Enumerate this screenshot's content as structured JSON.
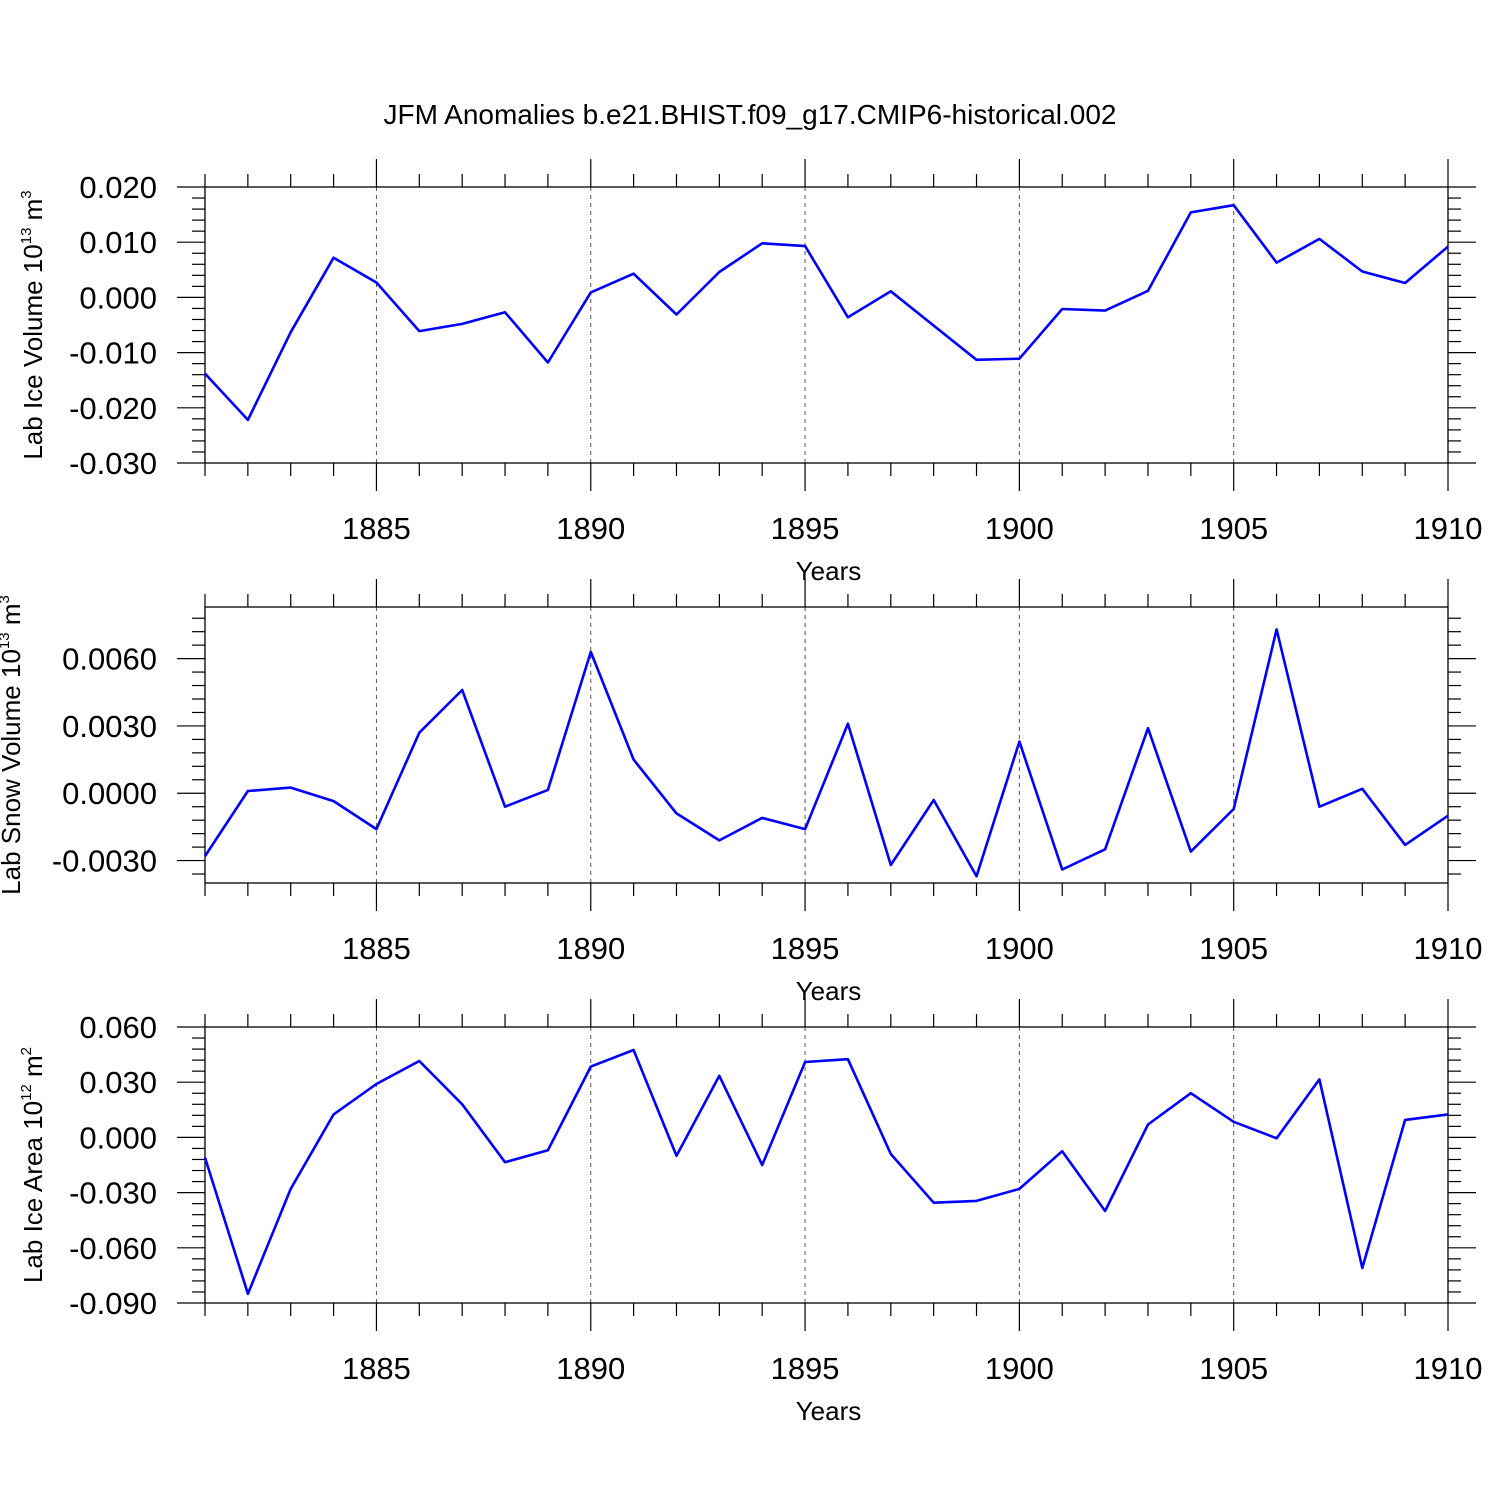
{
  "title": "JFM Anomalies b.e21.BHIST.f09_g17.CMIP6-historical.002",
  "colors": {
    "line": "#0000ff",
    "axis": "#000000",
    "grid": "#555555"
  },
  "chart_data": [
    {
      "type": "line",
      "xlabel": "Years",
      "ylabel": {
        "text": "Lab Ice Volume 10",
        "sup1": "13",
        "unit": " m",
        "sup2": "3"
      },
      "xlim": [
        1881,
        1910
      ],
      "ylim": [
        -0.03,
        0.02
      ],
      "xticks": [
        1885,
        1890,
        1895,
        1900,
        1905,
        1910
      ],
      "yticks": [
        "-0.030",
        "-0.020",
        "-0.010",
        "0.000",
        "0.010",
        "0.020"
      ],
      "ytick_values": [
        -0.03,
        -0.02,
        -0.01,
        0.0,
        0.01,
        0.02
      ],
      "x": [
        1881,
        1882,
        1883,
        1884,
        1885,
        1886,
        1887,
        1888,
        1889,
        1890,
        1891,
        1892,
        1893,
        1894,
        1895,
        1896,
        1897,
        1898,
        1899,
        1900,
        1901,
        1902,
        1903,
        1904,
        1905,
        1906,
        1907,
        1908,
        1909,
        1910
      ],
      "series": [
        {
          "name": "Lab Ice Volume",
          "values": [
            -0.0138,
            -0.0222,
            -0.0063,
            0.0072,
            0.0027,
            -0.0061,
            -0.0048,
            -0.0027,
            -0.0118,
            0.0009,
            0.0043,
            -0.0031,
            0.0046,
            0.0098,
            0.0093,
            -0.0036,
            0.0011,
            -0.0051,
            -0.0113,
            -0.0111,
            -0.0021,
            -0.0024,
            0.0012,
            0.0154,
            0.0167,
            0.0063,
            0.0106,
            0.0047,
            0.0026,
            0.0092
          ]
        }
      ]
    },
    {
      "type": "line",
      "xlabel": "Years",
      "ylabel": {
        "text": "Lab Snow Volume 10",
        "sup1": "13",
        "unit": " m",
        "sup2": "3"
      },
      "xlim": [
        1881,
        1910
      ],
      "ylim": [
        -0.004,
        0.0083
      ],
      "xticks": [
        1885,
        1890,
        1895,
        1900,
        1905,
        1910
      ],
      "yticks": [
        "-0.0030",
        "0.0000",
        "0.0030",
        "0.0060"
      ],
      "ytick_values": [
        -0.003,
        0.0,
        0.003,
        0.006
      ],
      "x": [
        1881,
        1882,
        1883,
        1884,
        1885,
        1886,
        1887,
        1888,
        1889,
        1890,
        1891,
        1892,
        1893,
        1894,
        1895,
        1896,
        1897,
        1898,
        1899,
        1900,
        1901,
        1902,
        1903,
        1904,
        1905,
        1906,
        1907,
        1908,
        1909,
        1910
      ],
      "series": [
        {
          "name": "Lab Snow Volume",
          "values": [
            -0.0028,
            0.0001,
            0.00025,
            -0.00035,
            -0.0016,
            0.0027,
            0.0046,
            -0.0006,
            0.00015,
            0.0063,
            0.0015,
            -0.0009,
            -0.0021,
            -0.0011,
            -0.0016,
            0.0031,
            -0.0032,
            -0.0003,
            -0.0037,
            0.0023,
            -0.0034,
            -0.0025,
            0.0029,
            -0.0026,
            -0.0007,
            0.0073,
            -0.0006,
            0.0002,
            -0.0023,
            -0.001
          ]
        }
      ]
    },
    {
      "type": "line",
      "xlabel": "Years",
      "ylabel": {
        "text": "Lab Ice Area 10",
        "sup1": "12",
        "unit": " m",
        "sup2": "2"
      },
      "xlim": [
        1881,
        1910
      ],
      "ylim": [
        -0.09,
        0.06
      ],
      "xticks": [
        1885,
        1890,
        1895,
        1900,
        1905,
        1910
      ],
      "yticks": [
        "-0.090",
        "-0.060",
        "-0.030",
        "0.000",
        "0.030",
        "0.060"
      ],
      "ytick_values": [
        -0.09,
        -0.06,
        -0.03,
        0.0,
        0.03,
        0.06
      ],
      "x": [
        1881,
        1882,
        1883,
        1884,
        1885,
        1886,
        1887,
        1888,
        1889,
        1890,
        1891,
        1892,
        1893,
        1894,
        1895,
        1896,
        1897,
        1898,
        1899,
        1900,
        1901,
        1902,
        1903,
        1904,
        1905,
        1906,
        1907,
        1908,
        1909,
        1910
      ],
      "series": [
        {
          "name": "Lab Ice Area",
          "values": [
            -0.011,
            -0.085,
            -0.028,
            0.0125,
            0.029,
            0.0415,
            0.018,
            -0.0135,
            -0.007,
            0.0385,
            0.0475,
            -0.01,
            0.0335,
            -0.015,
            0.041,
            0.0425,
            -0.009,
            -0.0355,
            -0.0345,
            -0.028,
            -0.0075,
            -0.04,
            0.007,
            0.024,
            0.0085,
            -0.0005,
            0.0315,
            -0.071,
            0.0095,
            0.0125
          ]
        }
      ]
    }
  ]
}
